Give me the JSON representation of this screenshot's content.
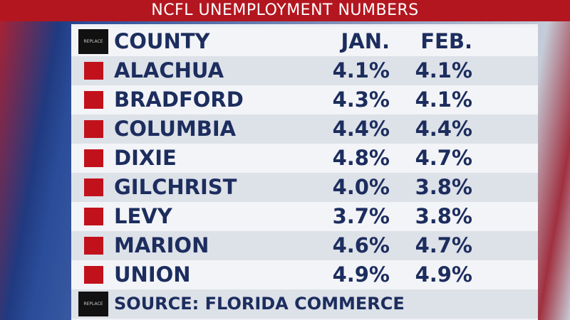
{
  "title": "NCFL UNEMPLOYMENT NUMBERS",
  "table": {
    "header_icon": "REPLACE",
    "header": [
      "COUNTY",
      "JAN.",
      "FEB."
    ],
    "rows": [
      [
        "ALACHUA",
        "4.1%",
        "4.1%"
      ],
      [
        "BRADFORD",
        "4.3%",
        "4.1%"
      ],
      [
        "COLUMBIA",
        "4.4%",
        "4.4%"
      ],
      [
        "DIXIE",
        "4.8%",
        "4.7%"
      ],
      [
        "GILCHRIST",
        "4.0%",
        "3.8%"
      ],
      [
        "LEVY",
        "3.7%",
        "3.8%"
      ],
      [
        "MARION",
        "4.6%",
        "4.7%"
      ],
      [
        "UNION",
        "4.9%",
        "4.9%"
      ]
    ]
  },
  "source": {
    "icon": "REPLACE",
    "text": "SOURCE: FLORIDA COMMERCE"
  }
}
